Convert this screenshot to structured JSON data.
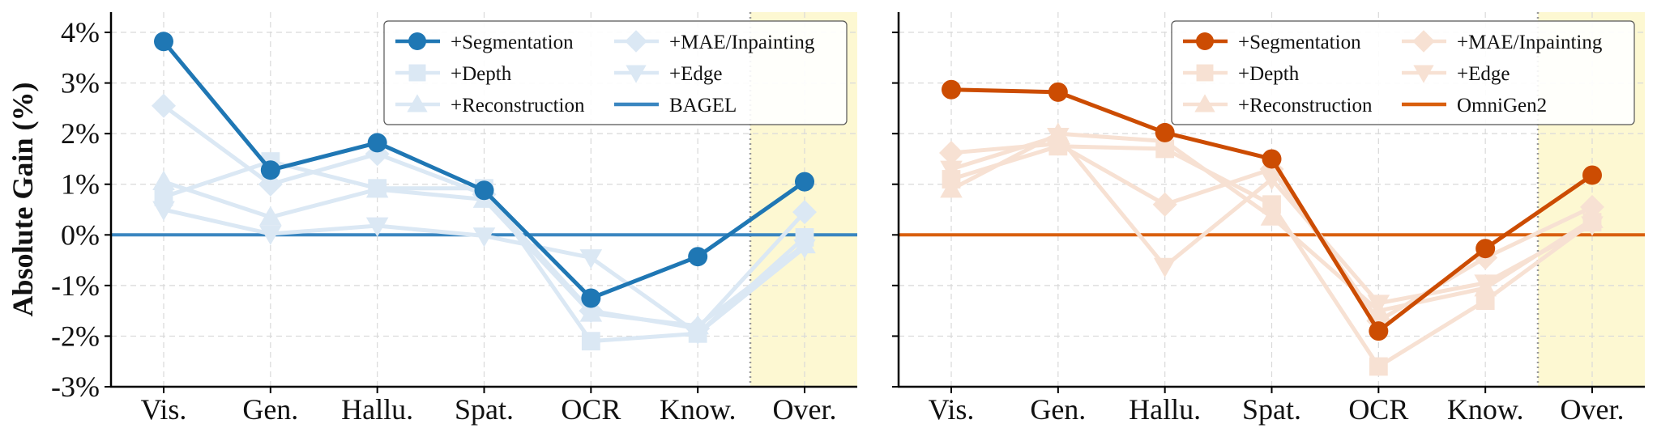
{
  "chart_data": [
    {
      "type": "line",
      "ylabel": "Absolute Gain (%)",
      "categories": [
        "Vis.",
        "Gen.",
        "Hallu.",
        "Spat.",
        "OCR",
        "Know.",
        "Over."
      ],
      "ylim": [
        -3,
        4.4
      ],
      "yticks": [
        -3,
        -2,
        -1,
        0,
        1,
        2,
        3,
        4
      ],
      "ytick_labels": [
        "-3%",
        "-2%",
        "-1%",
        "0%",
        "1%",
        "2%",
        "3%",
        "4%"
      ],
      "grid": true,
      "highlight_category": "Over.",
      "legend_position": "top-right",
      "baseline": {
        "name": "BAGEL",
        "value": 0,
        "color": "#3a86c0"
      },
      "series": [
        {
          "name": "+Segmentation",
          "marker": "circle",
          "color": "#1f77b4",
          "values": [
            3.82,
            1.28,
            1.82,
            0.88,
            -1.25,
            -0.43,
            1.05
          ]
        },
        {
          "name": "+Depth",
          "marker": "square",
          "color": "#dbe8f4",
          "values": [
            0.75,
            1.45,
            0.92,
            0.92,
            -2.1,
            -1.95,
            -0.05
          ]
        },
        {
          "name": "+Reconstruction",
          "marker": "triangle-up",
          "color": "#dbe8f4",
          "values": [
            1.05,
            0.35,
            0.9,
            0.7,
            -1.55,
            -1.8,
            -0.2
          ]
        },
        {
          "name": "+MAE/Inpainting",
          "marker": "diamond",
          "color": "#dbe8f4",
          "values": [
            2.55,
            1.0,
            1.6,
            0.8,
            -1.5,
            -1.85,
            0.45
          ]
        },
        {
          "name": "+Edge",
          "marker": "triangle-down",
          "color": "#dbe8f4",
          "values": [
            0.5,
            0.02,
            0.18,
            -0.02,
            -0.45,
            -1.95,
            -0.25
          ]
        }
      ]
    },
    {
      "type": "line",
      "ylabel": "",
      "categories": [
        "Vis.",
        "Gen.",
        "Hallu.",
        "Spat.",
        "OCR",
        "Know.",
        "Over."
      ],
      "ylim": [
        -3,
        4.4
      ],
      "yticks": [
        -3,
        -2,
        -1,
        0,
        1,
        2,
        3,
        4
      ],
      "ytick_labels": [],
      "grid": true,
      "highlight_category": "Over.",
      "legend_position": "top-right",
      "baseline": {
        "name": "OmniGen2",
        "value": 0,
        "color": "#d95f0e"
      },
      "series": [
        {
          "name": "+Segmentation",
          "marker": "circle",
          "color": "#cc4c02",
          "values": [
            2.87,
            2.82,
            2.02,
            1.5,
            -1.9,
            -0.27,
            1.18
          ]
        },
        {
          "name": "+Depth",
          "marker": "square",
          "color": "#f7e1d3",
          "values": [
            1.1,
            1.75,
            1.7,
            0.6,
            -2.6,
            -1.3,
            0.25
          ]
        },
        {
          "name": "+Reconstruction",
          "marker": "triangle-up",
          "color": "#f7e1d3",
          "values": [
            0.9,
            2.0,
            1.85,
            0.35,
            -1.5,
            -1.05,
            0.3
          ]
        },
        {
          "name": "+MAE/Inpainting",
          "marker": "diamond",
          "color": "#f7e1d3",
          "values": [
            1.62,
            1.8,
            0.6,
            1.3,
            -1.7,
            -0.45,
            0.55
          ]
        },
        {
          "name": "+Edge",
          "marker": "triangle-down",
          "color": "#f7e1d3",
          "values": [
            1.3,
            1.95,
            -0.62,
            1.1,
            -1.35,
            -0.95,
            0.2
          ]
        }
      ]
    }
  ]
}
